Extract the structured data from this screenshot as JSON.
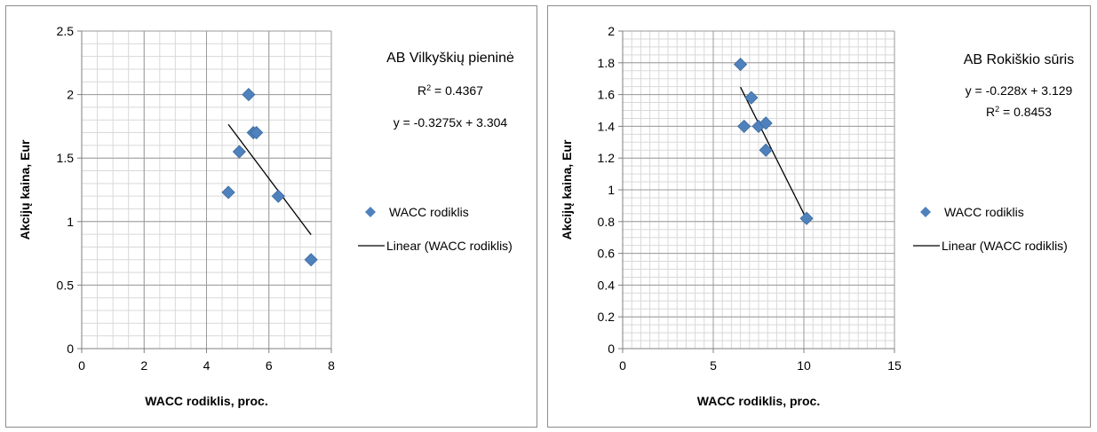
{
  "chart_data": [
    {
      "type": "scatter",
      "title": "AB Vilkyškių pieninė",
      "xlabel": "WACC rodiklis, proc.",
      "ylabel": "Akcijų kaina, Eur",
      "xlim": [
        0,
        8
      ],
      "ylim": [
        0,
        2.5
      ],
      "xticks": [
        0,
        2,
        4,
        6,
        8
      ],
      "yticks": [
        0,
        0.5,
        1,
        1.5,
        2,
        2.5
      ],
      "grid": true,
      "series": [
        {
          "name": "WACC rodiklis",
          "color": "#4F81BD",
          "x": [
            4.7,
            5.05,
            5.35,
            5.5,
            5.6,
            6.3,
            7.35
          ],
          "y": [
            1.23,
            1.55,
            2.0,
            1.7,
            1.7,
            1.2,
            0.7
          ]
        }
      ],
      "trendline": {
        "name": "Linear (WACC rodiklis)",
        "slope": -0.3275,
        "intercept": 3.304,
        "x_range": [
          4.7,
          7.35
        ],
        "equation": "y = -0.3275x + 3.304",
        "r2_label": "R",
        "r2_sup": "2",
        "r2_value": " = 0.4367"
      },
      "legend_position": "right"
    },
    {
      "type": "scatter",
      "title": "AB Rokiškio sūris",
      "xlabel": "WACC rodiklis, proc.",
      "ylabel": "Akcijų kaina, Eur",
      "xlim": [
        0,
        15
      ],
      "ylim": [
        0,
        2
      ],
      "xticks": [
        0,
        5,
        10,
        15
      ],
      "yticks": [
        0,
        0.2,
        0.4,
        0.6,
        0.8,
        1,
        1.2,
        1.4,
        1.6,
        1.8,
        2
      ],
      "grid": true,
      "series": [
        {
          "name": "WACC rodiklis",
          "color": "#4F81BD",
          "x": [
            6.5,
            6.7,
            7.1,
            7.5,
            7.9,
            7.9,
            10.15
          ],
          "y": [
            1.79,
            1.4,
            1.58,
            1.4,
            1.42,
            1.25,
            0.82
          ]
        }
      ],
      "trendline": {
        "name": "Linear (WACC rodiklis)",
        "slope": -0.228,
        "intercept": 3.129,
        "x_range": [
          6.5,
          10.15
        ],
        "equation": "y = -0.228x + 3.129",
        "r2_label": "R",
        "r2_sup": "2",
        "r2_value": " = 0.8453"
      },
      "legend_position": "right"
    }
  ]
}
